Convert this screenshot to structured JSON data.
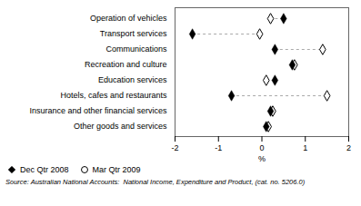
{
  "chart_data": {
    "type": "dumbbell",
    "categories": [
      "Operation of vehicles",
      "Transport services",
      "Communications",
      "Recreation and culture",
      "Education services",
      "Hotels, cafes and restaurants",
      "Insurance and other financial services",
      "Other goods and services"
    ],
    "series": [
      {
        "name": "Dec Qtr 2008",
        "color": "#000000",
        "marker": "diamond",
        "values": [
          0.5,
          -1.6,
          0.3,
          0.7,
          0.3,
          -0.7,
          0.2,
          0.1
        ]
      },
      {
        "name": "Mar Qtr 2009",
        "color": "#000000",
        "marker": "open_circle",
        "values": [
          0.2,
          -0.05,
          1.4,
          0.75,
          0.1,
          1.5,
          0.25,
          0.15
        ]
      }
    ],
    "xlabel": "%",
    "xlim": [
      -2,
      2
    ],
    "xticks": [
      -2,
      -1,
      0,
      1,
      2
    ],
    "grid": false,
    "legend": "lower left",
    "caption": "Source: Australian National Accounts:  National Income, Expenditure and Product, (cat. no. 5206.0)"
  }
}
